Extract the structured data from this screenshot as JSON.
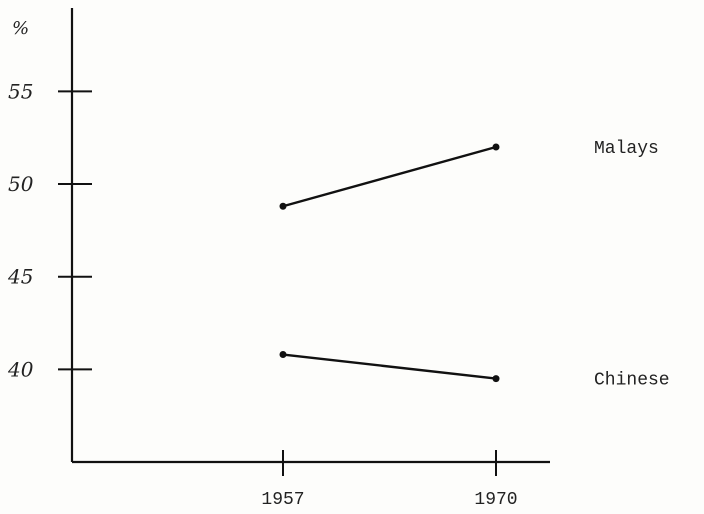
{
  "chart_data": {
    "type": "line",
    "x": [
      "1957",
      "1970"
    ],
    "ylabel": "%",
    "ylim": [
      35,
      59.5
    ],
    "y_ticks": [
      "55",
      "50",
      "45",
      "40"
    ],
    "grid": false,
    "series": [
      {
        "name": "Malays",
        "values": [
          48.8,
          52.0
        ]
      },
      {
        "name": "Chinese",
        "values": [
          40.8,
          39.5
        ]
      }
    ]
  }
}
